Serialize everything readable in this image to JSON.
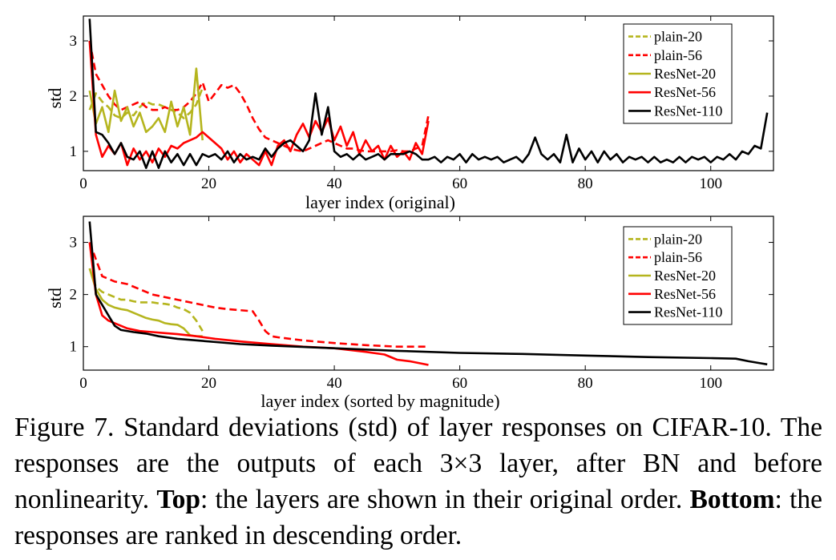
{
  "caption": {
    "figure_label": "Figure 7.",
    "text_1": "Standard deviations (std) of layer responses on CIFAR-10. The responses are the outputs of each 3×3 layer, after BN and before nonlinearity.",
    "top_label": "Top",
    "text_2": ": the layers are shown in their original order.",
    "bottom_label": "Bottom",
    "text_3": ": the responses are ranked in descending order."
  },
  "colors": {
    "plain-20": "#b5b51e",
    "plain-56": "#ff0000",
    "ResNet-20": "#b5b51e",
    "ResNet-56": "#ff0000",
    "ResNet-110": "#000000"
  },
  "chart_data": [
    {
      "type": "line",
      "xlabel": "layer index (original)",
      "ylabel": "std",
      "xlim": [
        0,
        110
      ],
      "ylim": [
        0.65,
        3.45
      ],
      "xticks": [
        0,
        20,
        40,
        60,
        80,
        100
      ],
      "yticks": [
        1,
        2,
        3
      ],
      "grid": false,
      "legend": "top-right",
      "series": [
        {
          "name": "plain-20",
          "dashed": true,
          "color": "#b5b51e",
          "x": [
            1,
            2,
            3,
            4,
            5,
            6,
            7,
            8,
            9,
            10,
            11,
            12,
            13,
            14,
            15,
            16,
            17,
            18,
            19
          ],
          "y": [
            1.75,
            2.05,
            1.9,
            1.8,
            1.65,
            1.6,
            1.7,
            1.65,
            1.8,
            1.9,
            1.85,
            1.85,
            1.8,
            1.75,
            1.7,
            1.6,
            1.7,
            1.85,
            2.15
          ]
        },
        {
          "name": "plain-56",
          "dashed": true,
          "color": "#ff0000",
          "x": [
            1,
            2,
            3,
            4,
            5,
            6,
            7,
            8,
            9,
            10,
            11,
            12,
            13,
            14,
            15,
            16,
            17,
            18,
            19,
            20,
            21,
            22,
            23,
            24,
            25,
            26,
            27,
            28,
            29,
            30,
            31,
            32,
            33,
            34,
            35,
            36,
            37,
            38,
            39,
            40,
            41,
            42,
            43,
            44,
            45,
            46,
            47,
            48,
            49,
            50,
            51,
            52,
            53,
            54,
            55
          ],
          "y": [
            3.0,
            2.4,
            2.2,
            2.0,
            1.85,
            1.75,
            1.8,
            1.85,
            1.9,
            1.8,
            1.75,
            1.75,
            1.8,
            1.75,
            1.75,
            1.8,
            1.9,
            2.05,
            2.25,
            1.9,
            2.05,
            2.2,
            2.15,
            2.2,
            2.05,
            1.85,
            1.6,
            1.4,
            1.25,
            1.2,
            1.15,
            1.1,
            1.05,
            1.02,
            1.0,
            1.05,
            1.1,
            1.15,
            1.2,
            1.15,
            1.1,
            1.05,
            1.05,
            1.02,
            1.0,
            1.0,
            1.0,
            1.0,
            1.0,
            1.02,
            1.0,
            1.0,
            1.05,
            1.1,
            1.65
          ]
        },
        {
          "name": "ResNet-20",
          "dashed": false,
          "color": "#b5b51e",
          "x": [
            1,
            2,
            3,
            4,
            5,
            6,
            7,
            8,
            9,
            10,
            11,
            12,
            13,
            14,
            15,
            16,
            17,
            18,
            19
          ],
          "y": [
            2.1,
            1.5,
            1.8,
            1.35,
            2.1,
            1.55,
            1.8,
            1.45,
            1.7,
            1.35,
            1.45,
            1.6,
            1.35,
            1.9,
            1.45,
            1.8,
            1.3,
            2.5,
            1.2
          ]
        },
        {
          "name": "ResNet-56",
          "dashed": false,
          "color": "#ff0000",
          "x": [
            1,
            2,
            3,
            4,
            5,
            6,
            7,
            8,
            9,
            10,
            11,
            12,
            13,
            14,
            15,
            16,
            17,
            18,
            19,
            20,
            21,
            22,
            23,
            24,
            25,
            26,
            27,
            28,
            29,
            30,
            31,
            32,
            33,
            34,
            35,
            36,
            37,
            38,
            39,
            40,
            41,
            42,
            43,
            44,
            45,
            46,
            47,
            48,
            49,
            50,
            51,
            52,
            53,
            54,
            55
          ],
          "y": [
            3.0,
            1.3,
            0.9,
            1.1,
            0.95,
            1.15,
            0.75,
            1.05,
            0.85,
            1.0,
            0.8,
            1.05,
            0.9,
            1.1,
            1.05,
            1.15,
            1.2,
            1.25,
            1.35,
            1.25,
            1.15,
            1.05,
            0.85,
            1.0,
            0.8,
            0.95,
            0.85,
            0.75,
            1.0,
            0.75,
            1.1,
            1.2,
            1.0,
            1.3,
            1.5,
            1.25,
            1.55,
            1.35,
            1.6,
            1.2,
            1.45,
            1.1,
            1.35,
            0.95,
            1.2,
            1.0,
            1.1,
            0.85,
            1.1,
            0.9,
            1.0,
            0.85,
            1.15,
            0.95,
            1.55
          ]
        },
        {
          "name": "ResNet-110",
          "dashed": false,
          "color": "#000000",
          "x": [
            1,
            2,
            3,
            4,
            5,
            6,
            7,
            8,
            9,
            10,
            11,
            12,
            13,
            14,
            15,
            16,
            17,
            18,
            19,
            20,
            21,
            22,
            23,
            24,
            25,
            26,
            27,
            28,
            29,
            30,
            31,
            32,
            33,
            34,
            35,
            36,
            37,
            38,
            39,
            40,
            41,
            42,
            43,
            44,
            45,
            46,
            47,
            48,
            49,
            50,
            51,
            52,
            53,
            54,
            55,
            56,
            57,
            58,
            59,
            60,
            61,
            62,
            63,
            64,
            65,
            66,
            67,
            68,
            69,
            70,
            71,
            72,
            73,
            74,
            75,
            76,
            77,
            78,
            79,
            80,
            81,
            82,
            83,
            84,
            85,
            86,
            87,
            88,
            89,
            90,
            91,
            92,
            93,
            94,
            95,
            96,
            97,
            98,
            99,
            100,
            101,
            102,
            103,
            104,
            105,
            106,
            107,
            108,
            109
          ],
          "y": [
            3.4,
            1.35,
            1.3,
            1.15,
            0.95,
            1.15,
            0.9,
            0.85,
            1.0,
            0.7,
            1.0,
            0.7,
            1.0,
            0.8,
            0.95,
            0.75,
            0.95,
            0.75,
            0.95,
            0.9,
            0.95,
            0.85,
            1.0,
            0.8,
            0.95,
            0.85,
            0.9,
            0.85,
            1.05,
            0.9,
            1.05,
            1.15,
            1.2,
            1.1,
            1.0,
            1.2,
            2.05,
            1.3,
            1.8,
            1.0,
            0.9,
            0.95,
            0.85,
            0.95,
            0.85,
            0.9,
            0.95,
            0.85,
            0.95,
            0.95,
            0.95,
            1.0,
            0.95,
            0.85,
            0.85,
            0.9,
            0.8,
            0.9,
            0.85,
            0.95,
            0.8,
            0.95,
            0.85,
            0.9,
            0.85,
            0.9,
            0.8,
            0.85,
            0.9,
            0.8,
            0.95,
            1.25,
            0.95,
            0.85,
            0.95,
            0.8,
            1.3,
            0.8,
            1.05,
            0.85,
            1.0,
            0.8,
            1.0,
            0.85,
            0.95,
            0.8,
            0.9,
            0.85,
            0.9,
            0.8,
            0.9,
            0.8,
            0.85,
            0.8,
            0.9,
            0.8,
            0.9,
            0.85,
            0.9,
            0.8,
            0.9,
            0.85,
            0.95,
            0.85,
            1.0,
            0.95,
            1.1,
            1.05,
            1.7
          ]
        }
      ]
    },
    {
      "type": "line",
      "xlabel": "layer index (sorted by magnitude)",
      "ylabel": "std",
      "xlim": [
        0,
        110
      ],
      "ylim": [
        0.55,
        3.5
      ],
      "xticks": [
        0,
        20,
        40,
        60,
        80,
        100
      ],
      "yticks": [
        1,
        2,
        3
      ],
      "grid": false,
      "legend": "top-right",
      "series": [
        {
          "name": "plain-20",
          "dashed": true,
          "color": "#b5b51e",
          "x": [
            1,
            2,
            3,
            4,
            5,
            6,
            7,
            8,
            9,
            10,
            11,
            12,
            13,
            14,
            15,
            16,
            17,
            18,
            19
          ],
          "y": [
            2.5,
            2.15,
            2.05,
            2.0,
            1.95,
            1.9,
            1.9,
            1.87,
            1.85,
            1.85,
            1.85,
            1.83,
            1.82,
            1.8,
            1.75,
            1.72,
            1.65,
            1.5,
            1.3
          ]
        },
        {
          "name": "plain-56",
          "dashed": true,
          "color": "#ff0000",
          "x": [
            1,
            3,
            5,
            7,
            9,
            11,
            13,
            15,
            17,
            19,
            21,
            23,
            25,
            27,
            28,
            29,
            30,
            31,
            35,
            40,
            45,
            50,
            55
          ],
          "y": [
            3.0,
            2.35,
            2.25,
            2.2,
            2.1,
            2.0,
            1.95,
            1.9,
            1.85,
            1.8,
            1.75,
            1.72,
            1.7,
            1.68,
            1.5,
            1.3,
            1.2,
            1.18,
            1.12,
            1.07,
            1.03,
            1.0,
            1.0
          ]
        },
        {
          "name": "ResNet-20",
          "dashed": false,
          "color": "#b5b51e",
          "x": [
            1,
            2,
            3,
            4,
            5,
            6,
            7,
            8,
            9,
            10,
            11,
            12,
            13,
            14,
            15,
            16,
            17,
            18,
            19
          ],
          "y": [
            2.5,
            2.1,
            1.9,
            1.8,
            1.75,
            1.72,
            1.7,
            1.65,
            1.6,
            1.55,
            1.52,
            1.5,
            1.45,
            1.43,
            1.42,
            1.35,
            1.22,
            1.2,
            1.2
          ]
        },
        {
          "name": "ResNet-56",
          "dashed": false,
          "color": "#ff0000",
          "x": [
            1,
            2,
            3,
            4,
            5,
            7,
            9,
            11,
            13,
            15,
            18,
            21,
            25,
            30,
            35,
            40,
            45,
            48,
            50,
            52,
            55
          ],
          "y": [
            3.0,
            2.0,
            1.6,
            1.5,
            1.45,
            1.35,
            1.3,
            1.28,
            1.26,
            1.24,
            1.2,
            1.15,
            1.1,
            1.05,
            1.0,
            0.97,
            0.9,
            0.85,
            0.75,
            0.72,
            0.65
          ]
        },
        {
          "name": "ResNet-110",
          "dashed": false,
          "color": "#000000",
          "x": [
            1,
            2,
            3,
            4,
            5,
            6,
            8,
            10,
            12,
            15,
            20,
            25,
            30,
            40,
            50,
            60,
            70,
            80,
            90,
            100,
            104,
            106,
            108,
            109
          ],
          "y": [
            3.4,
            2.0,
            1.8,
            1.6,
            1.4,
            1.32,
            1.28,
            1.25,
            1.2,
            1.15,
            1.1,
            1.05,
            1.02,
            0.97,
            0.92,
            0.88,
            0.86,
            0.83,
            0.8,
            0.78,
            0.77,
            0.72,
            0.68,
            0.66
          ]
        }
      ]
    }
  ]
}
